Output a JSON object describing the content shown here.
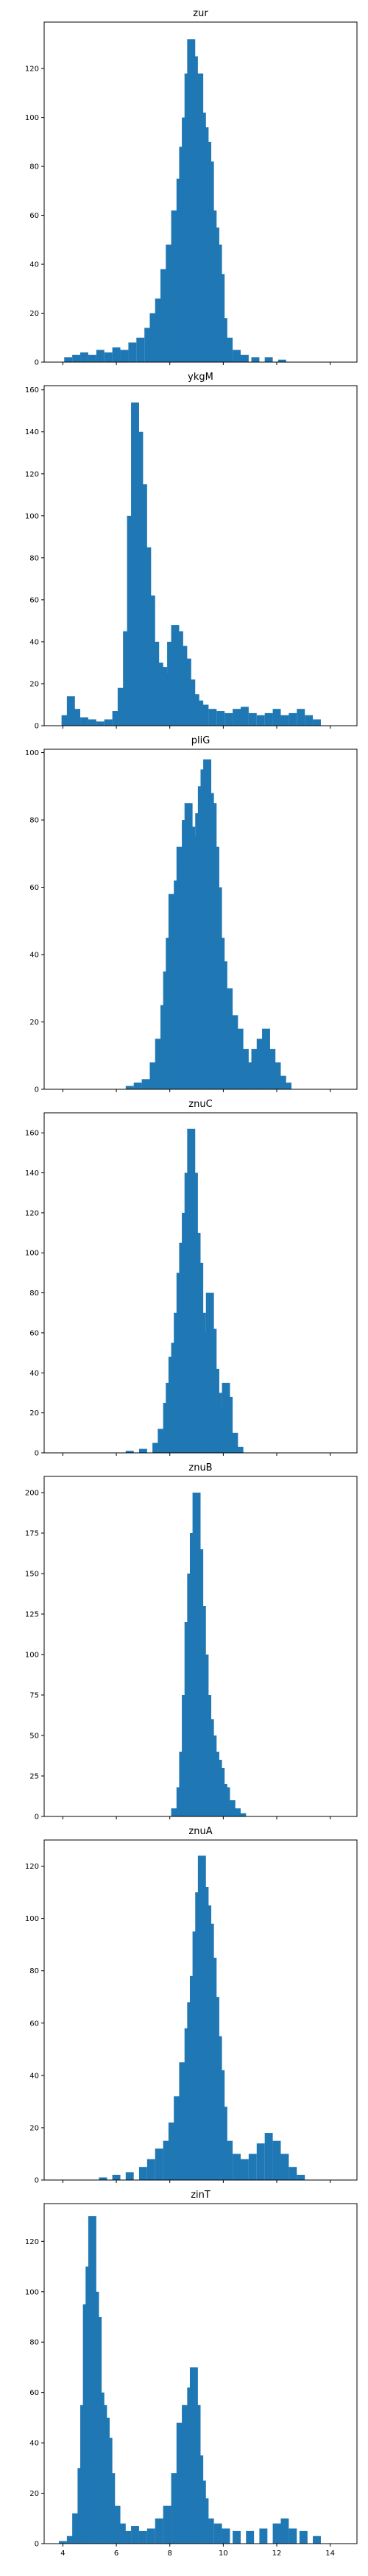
{
  "chart_data": [
    {
      "type": "bar",
      "title": "zur",
      "xlim": [
        3.3,
        15
      ],
      "ylim": [
        0,
        139
      ],
      "yticks": [
        0,
        20,
        40,
        60,
        80,
        100,
        120
      ],
      "xticks": [
        4,
        6,
        8,
        10,
        12,
        14
      ],
      "show_xtick_labels": false,
      "color": "#1f77b4",
      "centers": [
        4.2,
        4.5,
        4.8,
        5.1,
        5.4,
        5.7,
        6.0,
        6.3,
        6.6,
        6.9,
        7.2,
        7.4,
        7.6,
        7.8,
        8.0,
        8.2,
        8.4,
        8.5,
        8.6,
        8.7,
        8.8,
        8.9,
        9.0,
        9.1,
        9.2,
        9.3,
        9.4,
        9.5,
        9.6,
        9.7,
        9.8,
        9.9,
        10.0,
        10.2,
        10.5,
        10.8,
        11.2,
        11.7,
        12.2
      ],
      "values": [
        2,
        3,
        4,
        3,
        5,
        4,
        6,
        5,
        8,
        10,
        14,
        20,
        26,
        38,
        48,
        62,
        75,
        88,
        100,
        118,
        132,
        125,
        112,
        118,
        102,
        96,
        90,
        82,
        62,
        55,
        48,
        36,
        18,
        10,
        5,
        3,
        2,
        2,
        1
      ]
    },
    {
      "type": "bar",
      "title": "ykgM",
      "xlim": [
        3.3,
        15
      ],
      "ylim": [
        0,
        162
      ],
      "yticks": [
        0,
        20,
        40,
        60,
        80,
        100,
        120,
        140,
        160
      ],
      "xticks": [
        4,
        6,
        8,
        10,
        12,
        14
      ],
      "show_xtick_labels": false,
      "color": "#1f77b4",
      "centers": [
        4.1,
        4.3,
        4.5,
        4.8,
        5.1,
        5.4,
        5.7,
        6.0,
        6.2,
        6.4,
        6.55,
        6.7,
        6.85,
        7.0,
        7.15,
        7.3,
        7.45,
        7.6,
        7.75,
        7.9,
        8.05,
        8.2,
        8.35,
        8.5,
        8.65,
        8.8,
        8.95,
        9.1,
        9.3,
        9.6,
        9.9,
        10.2,
        10.5,
        10.8,
        11.1,
        11.4,
        11.7,
        12.0,
        12.3,
        12.6,
        12.9,
        13.2,
        13.5
      ],
      "values": [
        5,
        14,
        8,
        4,
        3,
        2,
        3,
        7,
        18,
        45,
        100,
        154,
        140,
        115,
        85,
        62,
        40,
        30,
        28,
        25,
        40,
        48,
        45,
        38,
        32,
        22,
        15,
        12,
        10,
        8,
        7,
        6,
        8,
        9,
        6,
        5,
        6,
        8,
        5,
        6,
        8,
        5,
        3
      ]
    },
    {
      "type": "bar",
      "title": "pliG",
      "xlim": [
        3.3,
        15
      ],
      "ylim": [
        0,
        101
      ],
      "yticks": [
        0,
        20,
        40,
        60,
        80,
        100
      ],
      "xticks": [
        4,
        6,
        8,
        10,
        12,
        14
      ],
      "show_xtick_labels": false,
      "color": "#1f77b4",
      "centers": [
        6.5,
        6.8,
        7.1,
        7.4,
        7.6,
        7.8,
        7.9,
        8.0,
        8.1,
        8.2,
        8.3,
        8.4,
        8.5,
        8.6,
        8.7,
        8.8,
        8.9,
        9.0,
        9.1,
        9.2,
        9.3,
        9.4,
        9.5,
        9.6,
        9.7,
        9.8,
        9.9,
        10.0,
        10.2,
        10.4,
        10.6,
        10.8,
        11.0,
        11.2,
        11.4,
        11.6,
        11.8,
        12.0,
        12.2,
        12.4
      ],
      "values": [
        1,
        2,
        3,
        8,
        15,
        25,
        35,
        45,
        58,
        52,
        62,
        72,
        68,
        80,
        85,
        78,
        75,
        70,
        82,
        90,
        95,
        98,
        88,
        85,
        72,
        60,
        45,
        38,
        30,
        22,
        18,
        12,
        8,
        12,
        15,
        18,
        12,
        8,
        4,
        2
      ]
    },
    {
      "type": "bar",
      "title": "znuC",
      "xlim": [
        3.3,
        15
      ],
      "ylim": [
        0,
        170
      ],
      "yticks": [
        0,
        20,
        40,
        60,
        80,
        100,
        120,
        140,
        160
      ],
      "xticks": [
        4,
        6,
        8,
        10,
        12,
        14
      ],
      "show_xtick_labels": false,
      "color": "#1f77b4",
      "centers": [
        6.5,
        7.0,
        7.5,
        7.7,
        7.9,
        8.0,
        8.1,
        8.2,
        8.3,
        8.4,
        8.5,
        8.6,
        8.7,
        8.8,
        8.9,
        9.0,
        9.1,
        9.2,
        9.3,
        9.4,
        9.5,
        9.6,
        9.7,
        9.8,
        9.9,
        10.0,
        10.1,
        10.2,
        10.4,
        10.6
      ],
      "values": [
        1,
        2,
        5,
        12,
        25,
        35,
        48,
        55,
        70,
        90,
        105,
        120,
        140,
        162,
        140,
        110,
        95,
        70,
        60,
        55,
        80,
        62,
        42,
        30,
        22,
        18,
        35,
        28,
        10,
        3
      ]
    },
    {
      "type": "bar",
      "title": "znuB",
      "xlim": [
        3.3,
        15
      ],
      "ylim": [
        0,
        210
      ],
      "yticks": [
        0,
        25,
        50,
        75,
        100,
        125,
        150,
        175,
        200
      ],
      "xticks": [
        4,
        6,
        8,
        10,
        12,
        14
      ],
      "show_xtick_labels": false,
      "color": "#1f77b4",
      "centers": [
        8.2,
        8.4,
        8.5,
        8.6,
        8.7,
        8.8,
        8.9,
        9.0,
        9.1,
        9.2,
        9.3,
        9.4,
        9.5,
        9.6,
        9.7,
        9.8,
        9.9,
        10.0,
        10.1,
        10.3,
        10.5,
        10.7
      ],
      "values": [
        5,
        18,
        40,
        75,
        120,
        150,
        175,
        200,
        165,
        130,
        100,
        75,
        60,
        50,
        40,
        35,
        30,
        20,
        18,
        10,
        5,
        2
      ]
    },
    {
      "type": "bar",
      "title": "znuA",
      "xlim": [
        3.3,
        15
      ],
      "ylim": [
        0,
        130
      ],
      "yticks": [
        0,
        20,
        40,
        60,
        80,
        100,
        120
      ],
      "xticks": [
        4,
        6,
        8,
        10,
        12,
        14
      ],
      "show_xtick_labels": false,
      "color": "#1f77b4",
      "centers": [
        5.5,
        6.0,
        6.5,
        7.0,
        7.3,
        7.6,
        7.9,
        8.1,
        8.3,
        8.5,
        8.7,
        8.8,
        8.9,
        9.0,
        9.1,
        9.2,
        9.3,
        9.4,
        9.5,
        9.6,
        9.7,
        9.8,
        9.9,
        10.0,
        10.2,
        10.5,
        10.8,
        11.1,
        11.4,
        11.7,
        12.0,
        12.3,
        12.6,
        12.9
      ],
      "values": [
        1,
        2,
        3,
        5,
        8,
        12,
        15,
        22,
        32,
        45,
        58,
        68,
        78,
        95,
        110,
        124,
        112,
        105,
        98,
        85,
        70,
        55,
        42,
        28,
        15,
        10,
        8,
        10,
        14,
        18,
        15,
        10,
        5,
        2
      ]
    },
    {
      "type": "bar",
      "title": "zinT",
      "xlim": [
        3.3,
        15
      ],
      "ylim": [
        0,
        135
      ],
      "yticks": [
        0,
        20,
        40,
        60,
        80,
        100,
        120
      ],
      "xticks": [
        4,
        6,
        8,
        10,
        12,
        14
      ],
      "show_xtick_labels": true,
      "xtick_labels": [
        "4",
        "6",
        "8",
        "10",
        "12",
        "14"
      ],
      "color": "#1f77b4",
      "centers": [
        4.0,
        4.3,
        4.5,
        4.7,
        4.8,
        4.9,
        5.0,
        5.1,
        5.2,
        5.3,
        5.4,
        5.5,
        5.6,
        5.7,
        5.8,
        6.0,
        6.2,
        6.4,
        6.7,
        7.0,
        7.3,
        7.6,
        7.9,
        8.2,
        8.4,
        8.6,
        8.8,
        8.9,
        9.0,
        9.1,
        9.2,
        9.3,
        9.5,
        9.8,
        10.1,
        10.5,
        11.0,
        11.5,
        12.0,
        12.3,
        12.6,
        13.0,
        13.5
      ],
      "values": [
        1,
        3,
        12,
        30,
        55,
        95,
        110,
        130,
        100,
        90,
        60,
        55,
        50,
        42,
        28,
        15,
        8,
        5,
        7,
        5,
        6,
        10,
        15,
        28,
        48,
        55,
        62,
        70,
        55,
        35,
        25,
        18,
        10,
        8,
        6,
        5,
        5,
        6,
        8,
        10,
        6,
        5,
        3
      ]
    }
  ]
}
